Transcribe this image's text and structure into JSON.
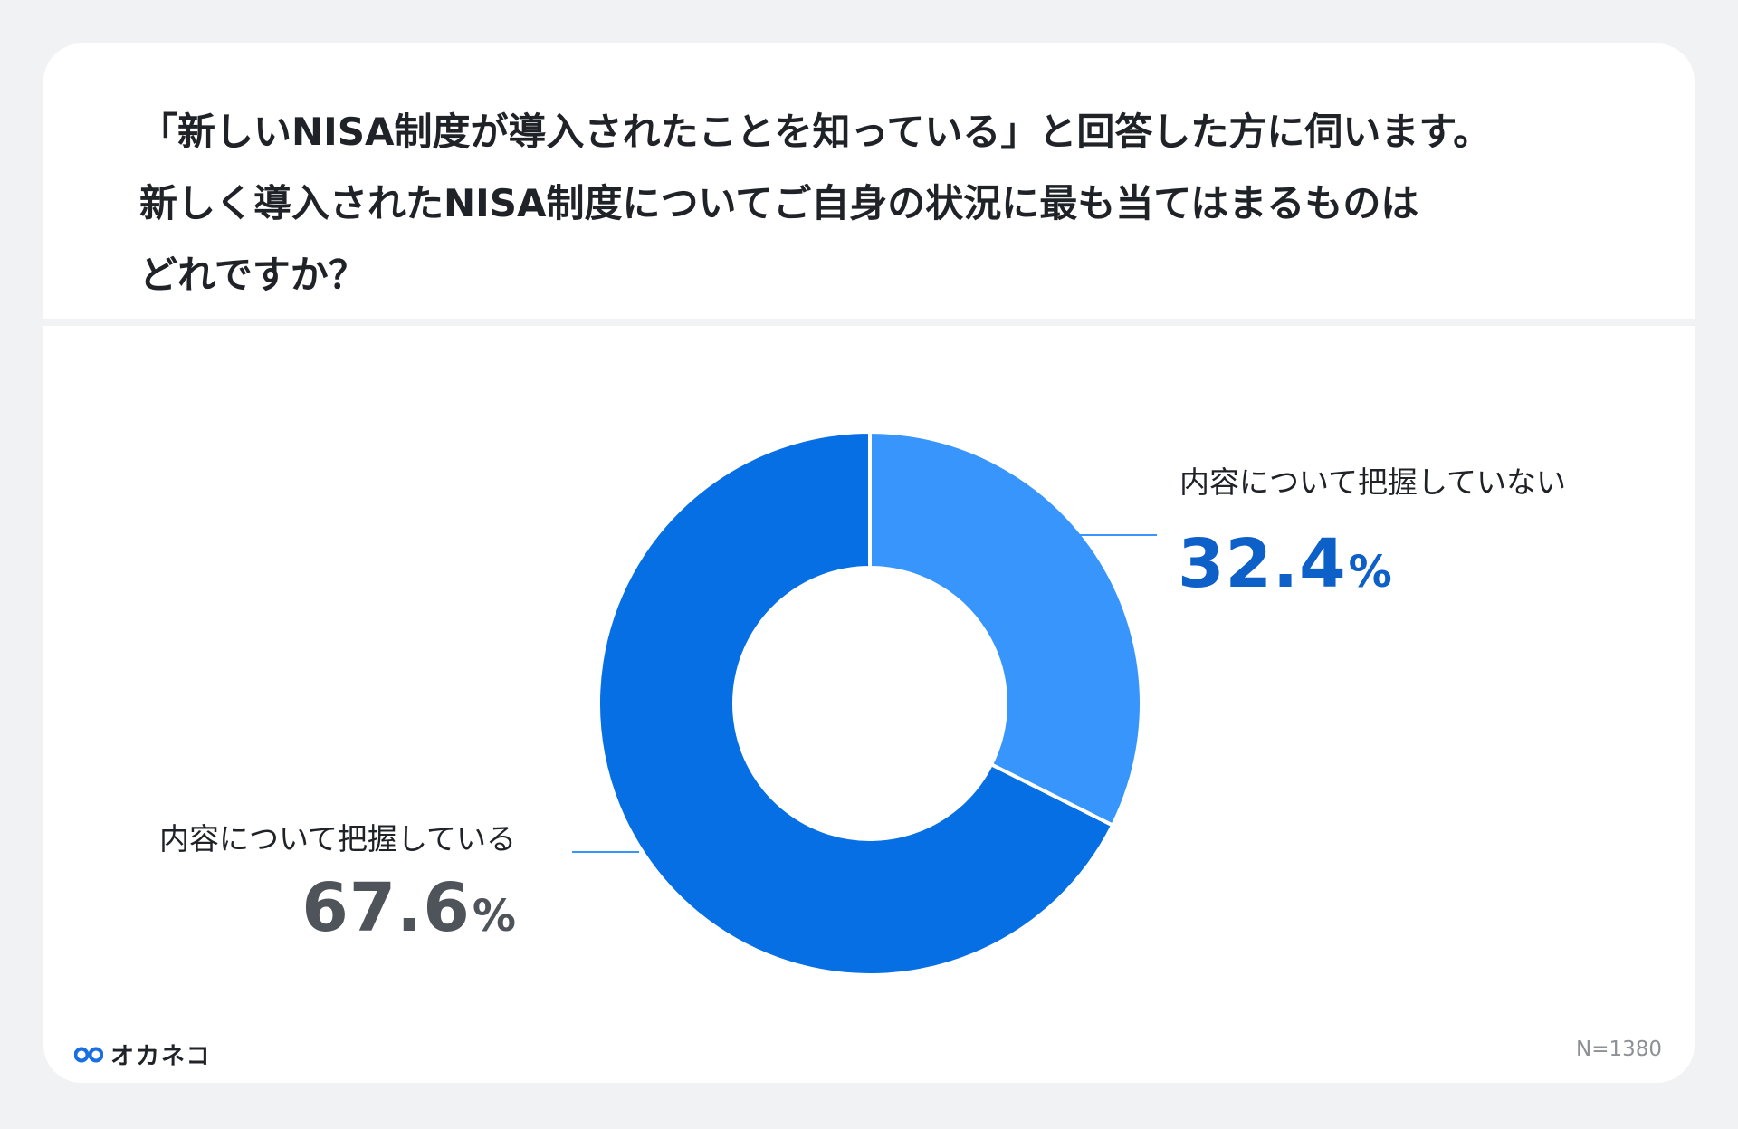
{
  "question": {
    "line1": "「新しいNISA制度が導入されたことを知っている」と回答した方に伺います。",
    "line2": "新しく導入されたNISA制度についてご自身の状況に最も当てはまるものは",
    "line3": "どれですか？"
  },
  "brand": {
    "name": "オカネコ",
    "logo_icon": "glasses-logo-icon",
    "logo_color": "#1a6fe0"
  },
  "sample_size": "N=1380",
  "chart_data": {
    "type": "pie",
    "variant": "donut",
    "categories": [
      "内容について把握していない",
      "内容について把握している"
    ],
    "values": [
      32.4,
      67.6
    ],
    "unit": "%",
    "value_labels": [
      "32.4",
      "67.6"
    ],
    "colors": [
      "#3795fb",
      "#066fe3"
    ],
    "value_label_colors": [
      "#0c60c8",
      "#4f545a"
    ],
    "start_angle": "12 o'clock",
    "direction": "clockwise",
    "legend": "none"
  }
}
